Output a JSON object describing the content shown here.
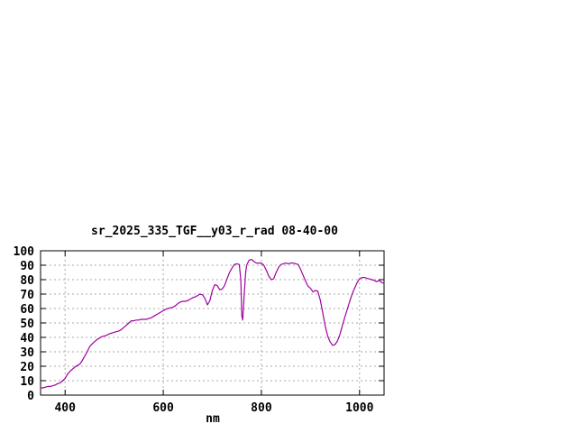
{
  "chart_data": {
    "type": "line",
    "title": "sr_2025_335_TGF__y03_r_rad 08-40-00",
    "xlabel": "nm",
    "ylabel": "",
    "xlim": [
      350,
      1050
    ],
    "ylim": [
      0,
      100
    ],
    "x_ticks": [
      400,
      600,
      800,
      1000
    ],
    "y_ticks": [
      0,
      10,
      20,
      30,
      40,
      50,
      60,
      70,
      80,
      90,
      100
    ],
    "grid": "dashed",
    "legend": "none",
    "colors": {
      "line": "#A000A0",
      "grid": "#A8A8A8",
      "axis": "#000000",
      "background": "#FFFFFF"
    },
    "series": [
      {
        "name": "sr_2025_335_TGF__y03_r_rad 08-40-00",
        "x": [
          350,
          355,
          360,
          365,
          370,
          375,
          380,
          385,
          390,
          395,
          400,
          405,
          410,
          415,
          420,
          425,
          430,
          435,
          440,
          445,
          450,
          455,
          460,
          465,
          470,
          475,
          480,
          485,
          490,
          495,
          500,
          505,
          510,
          515,
          520,
          525,
          530,
          535,
          540,
          545,
          550,
          555,
          560,
          565,
          570,
          575,
          580,
          585,
          590,
          595,
          600,
          605,
          610,
          615,
          620,
          625,
          630,
          635,
          640,
          645,
          650,
          655,
          660,
          665,
          670,
          675,
          680,
          685,
          690,
          695,
          700,
          705,
          710,
          715,
          720,
          725,
          730,
          735,
          740,
          745,
          750,
          755,
          758,
          760,
          762,
          765,
          768,
          770,
          775,
          780,
          785,
          790,
          795,
          800,
          805,
          810,
          815,
          820,
          825,
          830,
          835,
          840,
          845,
          850,
          855,
          860,
          865,
          870,
          875,
          880,
          885,
          890,
          895,
          900,
          905,
          910,
          915,
          920,
          925,
          930,
          935,
          940,
          945,
          950,
          955,
          960,
          965,
          970,
          975,
          980,
          985,
          990,
          995,
          1000,
          1005,
          1010,
          1015,
          1020,
          1025,
          1030,
          1035,
          1040,
          1045,
          1050
        ],
        "y": [
          5,
          5,
          5.5,
          6,
          6,
          6.5,
          7,
          8,
          8.5,
          10,
          11.5,
          14.5,
          16.5,
          18,
          19.5,
          20.5,
          21.5,
          24,
          27,
          30,
          33.5,
          35.5,
          37,
          38.5,
          39.5,
          40.5,
          41,
          41.5,
          42.5,
          43,
          43.5,
          44,
          44.5,
          45.5,
          47,
          48.5,
          50,
          51.5,
          51.5,
          52,
          52,
          52.5,
          52.5,
          52.5,
          53,
          53.5,
          54.5,
          55.5,
          56.5,
          57.5,
          58.5,
          59.5,
          60,
          60.5,
          61,
          62,
          63.5,
          64.5,
          65,
          65,
          65.5,
          66.5,
          67.5,
          68,
          69,
          70,
          69.5,
          67,
          62.5,
          65.5,
          72.5,
          76.5,
          76,
          73,
          73.5,
          76,
          80.5,
          85,
          88,
          90.5,
          91,
          90.5,
          80,
          55,
          52,
          70,
          85,
          90,
          93.5,
          94,
          92.5,
          91.5,
          91.5,
          91.5,
          90,
          86.5,
          82.5,
          80,
          80.5,
          85,
          88.5,
          90.5,
          91,
          91.5,
          91,
          91.5,
          91.5,
          91,
          90.5,
          87,
          83,
          79,
          75.5,
          74,
          71.5,
          72.5,
          72,
          66,
          57,
          48,
          41,
          37,
          34.5,
          35,
          37.5,
          42,
          48,
          54,
          59.5,
          65,
          70,
          74,
          78,
          80.5,
          81.5,
          81.5,
          81,
          80.5,
          80,
          79.5,
          78.5,
          79.5,
          78,
          77.5
        ]
      }
    ]
  }
}
